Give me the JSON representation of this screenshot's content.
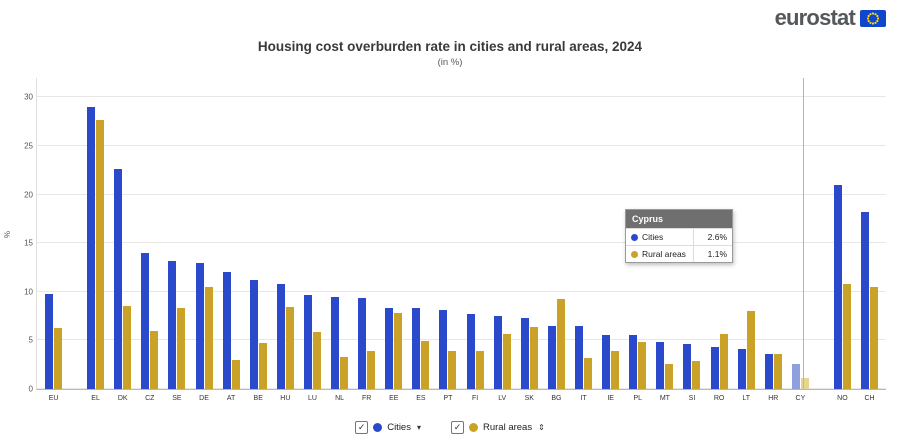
{
  "logo": {
    "text": "eurostat"
  },
  "title": "Housing cost overburden rate in cities and rural areas, 2024",
  "subtitle": "(in %)",
  "chart_data": {
    "type": "bar",
    "title": "Housing cost overburden rate in cities and rural areas, 2024",
    "subtitle": "(in %)",
    "ylabel": "%",
    "xlabel": "",
    "grid": true,
    "legend_position": "bottom",
    "ylim": [
      0,
      30
    ],
    "yticks": [
      0,
      5,
      10,
      15,
      20,
      25,
      30
    ],
    "scale_max": 32,
    "categories": [
      "EU",
      "EL",
      "DK",
      "CZ",
      "SE",
      "DE",
      "AT",
      "BE",
      "HU",
      "LU",
      "NL",
      "FR",
      "EE",
      "ES",
      "PT",
      "FI",
      "LV",
      "SK",
      "BG",
      "IT",
      "IE",
      "PL",
      "MT",
      "SI",
      "RO",
      "LT",
      "HR",
      "CY",
      "NO",
      "CH"
    ],
    "series": [
      {
        "name": "Cities",
        "color": "#2B4ACB",
        "highlight_color": "#8FA0DF",
        "values": [
          9.8,
          29.0,
          22.6,
          14.0,
          13.2,
          13.0,
          12.0,
          11.2,
          10.8,
          9.7,
          9.5,
          9.4,
          8.3,
          8.3,
          8.1,
          7.7,
          7.5,
          7.3,
          6.5,
          6.5,
          5.6,
          5.6,
          4.8,
          4.6,
          4.3,
          4.1,
          3.6,
          2.6,
          21.0,
          18.2
        ]
      },
      {
        "name": "Rural areas",
        "color": "#C9A227",
        "highlight_color": "#E6D593",
        "values": [
          6.3,
          27.7,
          8.5,
          6.0,
          8.3,
          10.5,
          3.0,
          4.7,
          8.4,
          5.9,
          3.3,
          3.9,
          7.8,
          4.9,
          3.9,
          3.9,
          5.7,
          6.4,
          9.3,
          3.2,
          3.9,
          4.8,
          2.6,
          2.9,
          5.7,
          8.0,
          3.6,
          1.1,
          10.8,
          10.5
        ]
      }
    ],
    "highlighted_category": "CY",
    "group_gaps_after": [
      "EU",
      "CY"
    ]
  },
  "tooltip": {
    "title": "Cyprus",
    "rows": [
      {
        "series": "Cities",
        "value": "2.6%"
      },
      {
        "series": "Rural areas",
        "value": "1.1%"
      }
    ]
  },
  "legend": {
    "items": [
      {
        "label": "Cities",
        "checked": true,
        "checkmark": "✓",
        "caret": "▾"
      },
      {
        "label": "Rural areas",
        "checked": true,
        "checkmark": "✓",
        "caret": "⇕"
      }
    ]
  }
}
